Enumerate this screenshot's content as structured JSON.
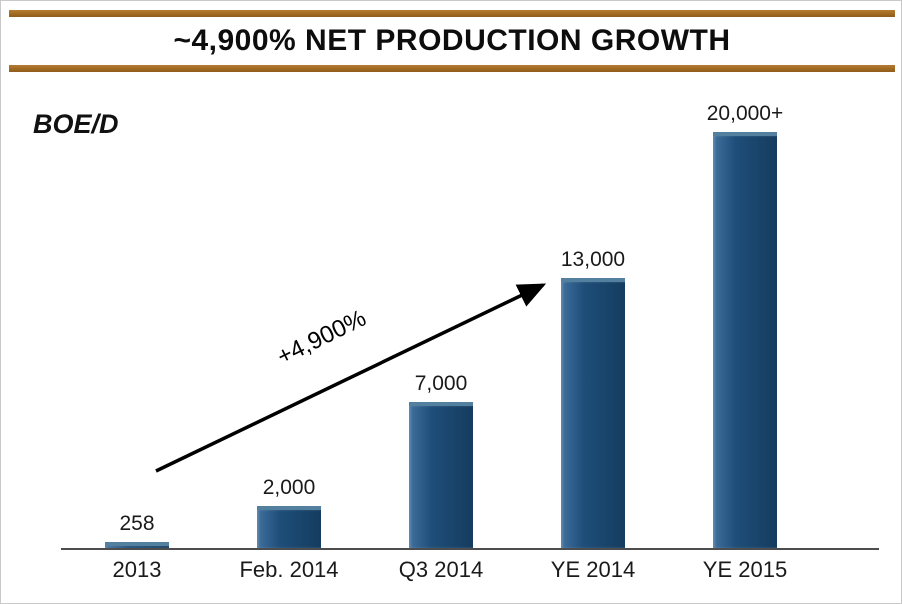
{
  "header": {
    "title": "~4,900% NET PRODUCTION GROWTH"
  },
  "colors": {
    "rule_brown": "#a16a22",
    "bar_blue": "#1e4e79",
    "bar_highlight": "#54809f",
    "axis_gray": "#4d4d4d"
  },
  "chart_data": {
    "type": "bar",
    "title": "~4,900% NET PRODUCTION GROWTH",
    "ylabel": "BOE/D",
    "xlabel": "",
    "categories": [
      "2013",
      "Feb. 2014",
      "Q3 2014",
      "YE 2014",
      "YE 2015"
    ],
    "values": [
      258,
      2000,
      7000,
      13000,
      20000
    ],
    "value_labels": [
      "258",
      "2,000",
      "7,000",
      "13,000",
      "20,000+"
    ],
    "ylim": [
      0,
      20000
    ],
    "grid": "off",
    "legend": "none",
    "annotation": "+4,900%",
    "annotation_note": "arrow from above 2013 bar to 13,000 label of YE 2014"
  }
}
